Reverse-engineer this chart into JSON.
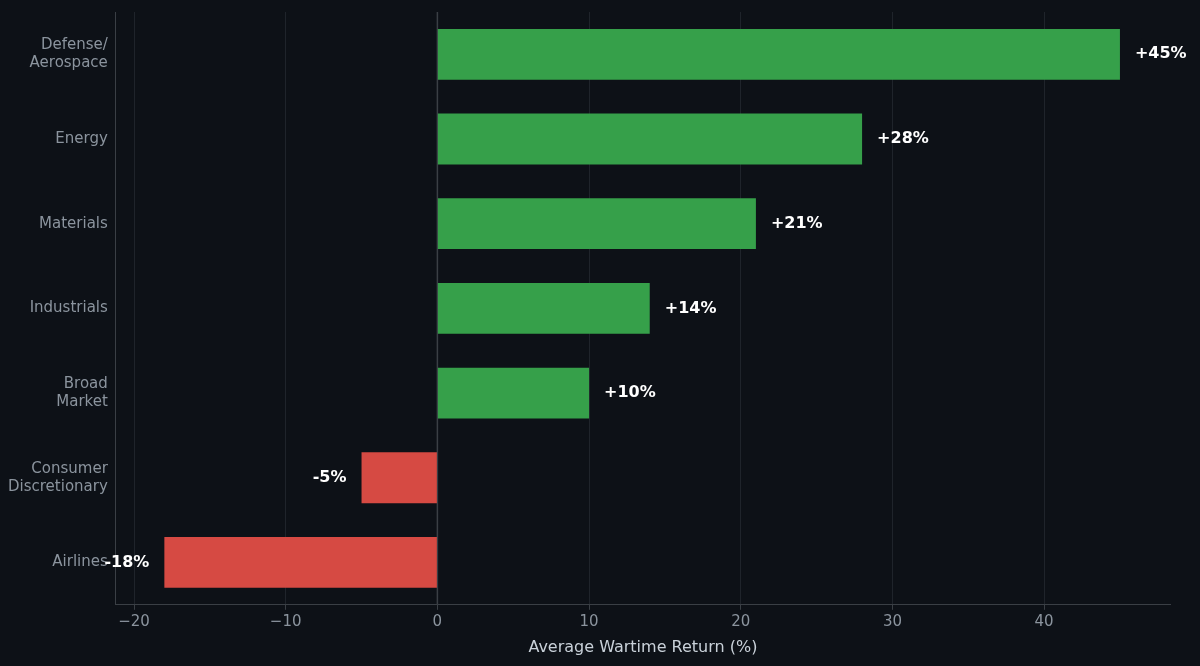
{
  "chart_data": {
    "type": "bar",
    "orientation": "horizontal",
    "xlabel": "Average Wartime Return (%)",
    "categories": [
      "Defense/\nAerospace",
      "Energy",
      "Materials",
      "Industrials",
      "Broad\nMarket",
      "Consumer\nDiscretionary",
      "Airlines"
    ],
    "values": [
      45,
      28,
      21,
      14,
      10,
      -5,
      -18
    ],
    "colors": [
      "#36a04a",
      "#36a04a",
      "#36a04a",
      "#36a04a",
      "#36a04a",
      "#d64a43",
      "#d64a43"
    ],
    "value_labels": [
      "+45%",
      "+28%",
      "+21%",
      "+14%",
      "+10%",
      "-5%",
      "-18%"
    ],
    "xlim": [
      -21.2,
      48.3
    ],
    "xticks": [
      -20,
      -10,
      0,
      10,
      20,
      30,
      40
    ],
    "ref_lines": [
      {
        "axis": "x",
        "value": 0,
        "color": "#3a3f45"
      }
    ],
    "grid": "x",
    "legend": false
  }
}
